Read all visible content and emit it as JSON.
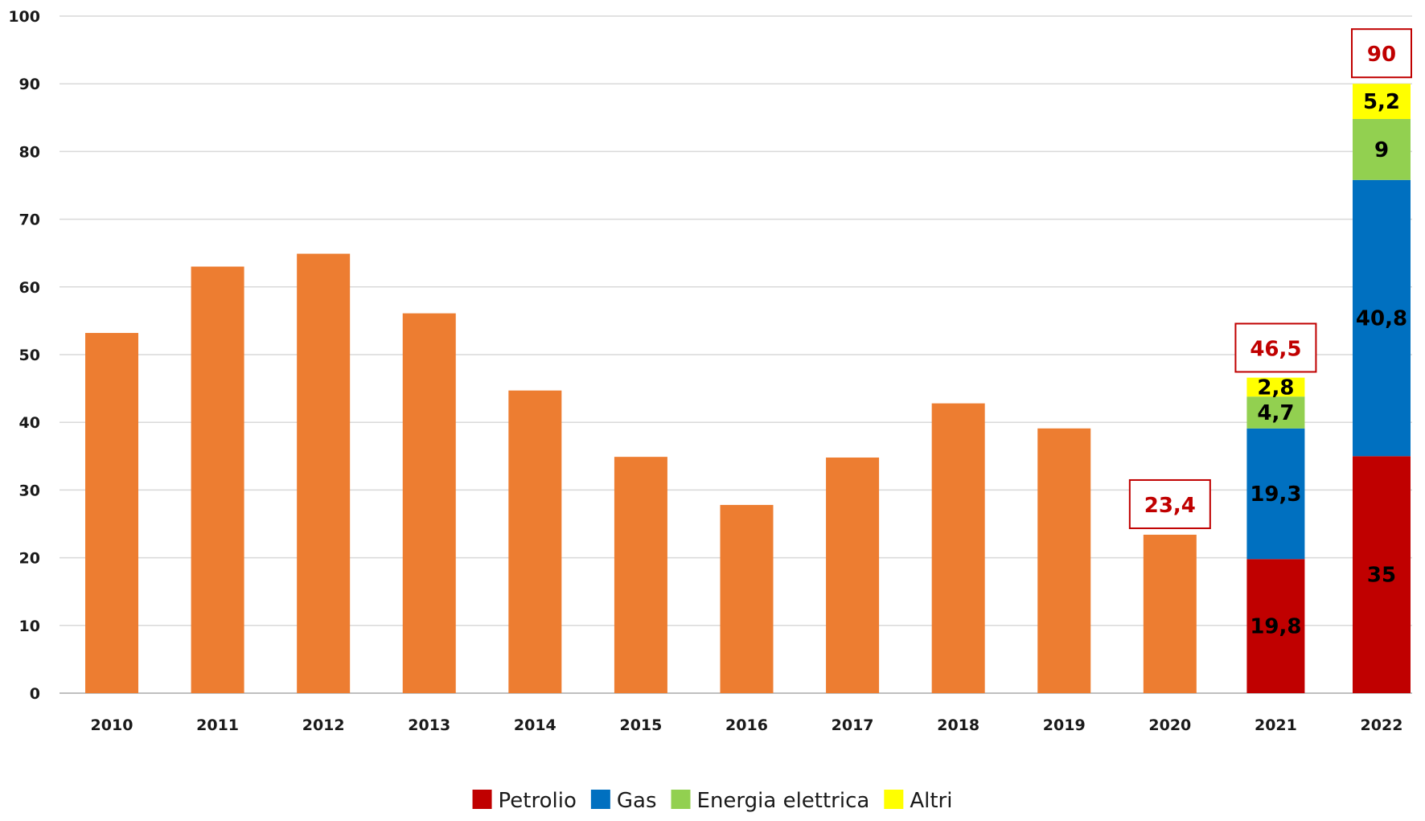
{
  "chart_data": {
    "type": "bar",
    "title": "",
    "xlabel": "",
    "ylabel": "",
    "ylim": [
      0,
      100
    ],
    "yticks": [
      0,
      10,
      20,
      30,
      40,
      50,
      60,
      70,
      80,
      90,
      100
    ],
    "grid": true,
    "categories": [
      "2010",
      "2011",
      "2012",
      "2013",
      "2014",
      "2015",
      "2016",
      "2017",
      "2018",
      "2019",
      "2020",
      "2021",
      "2022"
    ],
    "total_color": "#ed7d31",
    "totals": [
      53.2,
      63.0,
      64.9,
      56.1,
      44.7,
      34.9,
      27.8,
      34.8,
      42.8,
      39.1,
      23.4,
      null,
      null
    ],
    "series": [
      {
        "name": "Petrolio",
        "color": "#c00000",
        "values": [
          null,
          null,
          null,
          null,
          null,
          null,
          null,
          null,
          null,
          null,
          null,
          19.8,
          35
        ],
        "labels": [
          "",
          "",
          "",
          "",
          "",
          "",
          "",
          "",
          "",
          "",
          "",
          "19,8",
          "35"
        ]
      },
      {
        "name": "Gas",
        "color": "#0070c0",
        "values": [
          null,
          null,
          null,
          null,
          null,
          null,
          null,
          null,
          null,
          null,
          null,
          19.3,
          40.8
        ],
        "labels": [
          "",
          "",
          "",
          "",
          "",
          "",
          "",
          "",
          "",
          "",
          "",
          "19,3",
          "40,8"
        ]
      },
      {
        "name": "Energia elettrica",
        "color": "#92d050",
        "values": [
          null,
          null,
          null,
          null,
          null,
          null,
          null,
          null,
          null,
          null,
          null,
          4.7,
          9
        ],
        "labels": [
          "",
          "",
          "",
          "",
          "",
          "",
          "",
          "",
          "",
          "",
          "",
          "4,7",
          "9"
        ]
      },
      {
        "name": "Altri",
        "color": "#ffff00",
        "values": [
          null,
          null,
          null,
          null,
          null,
          null,
          null,
          null,
          null,
          null,
          null,
          2.8,
          5.2
        ],
        "labels": [
          "",
          "",
          "",
          "",
          "",
          "",
          "",
          "",
          "",
          "",
          "",
          "2,8",
          "5,2"
        ]
      }
    ],
    "callouts": [
      {
        "category": "2020",
        "value": 23.4,
        "label": "23,4"
      },
      {
        "category": "2021",
        "value": 46.5,
        "label": "46,5"
      },
      {
        "category": "2022",
        "value": 90,
        "label": "90"
      }
    ],
    "callout_color": "#c00000",
    "legend_position": "bottom",
    "legend": [
      "Petrolio",
      "Gas",
      "Energia elettrica",
      "Altri"
    ]
  }
}
